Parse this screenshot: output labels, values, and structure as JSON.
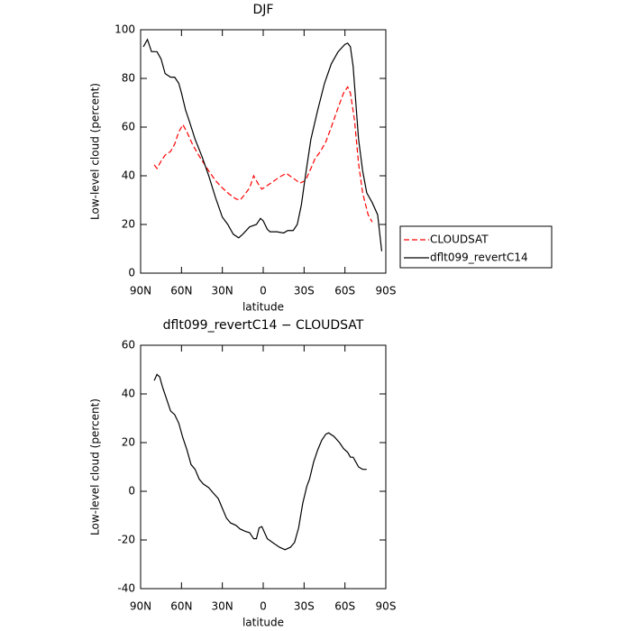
{
  "chart_data": [
    {
      "type": "line",
      "title": "DJF",
      "x_label": "latitude",
      "y_label": "Low-level cloud (percent)",
      "xlim": [
        90,
        -90
      ],
      "xticks": [
        {
          "value": 90,
          "label": "90N"
        },
        {
          "value": 60,
          "label": "60N"
        },
        {
          "value": 30,
          "label": "30N"
        },
        0,
        {
          "value": -30,
          "label": "30S"
        },
        {
          "value": -60,
          "label": "60S"
        },
        {
          "value": -90,
          "label": "90S"
        }
      ],
      "ylim": [
        0,
        100
      ],
      "yticks": [
        0,
        20,
        40,
        60,
        80,
        100
      ],
      "legend": "right",
      "series": [
        {
          "name": "CLOUDSAT",
          "color": "#ff0000",
          "dashed": true,
          "x": [
            80,
            78,
            75,
            72,
            68,
            65,
            62,
            59,
            56,
            52,
            48,
            44,
            40,
            35,
            30,
            25,
            20,
            17,
            14,
            10,
            7,
            5,
            3,
            1,
            -3,
            -7,
            -12,
            -17,
            -22,
            -27,
            -31,
            -35,
            -38,
            -42,
            -46,
            -50,
            -55,
            -59,
            -62,
            -64,
            -67,
            -70,
            -73,
            -77,
            -80
          ],
          "values": [
            44.5,
            43,
            46,
            48.5,
            50,
            53,
            58,
            61,
            58,
            53,
            49,
            45.5,
            42,
            38,
            35,
            32.5,
            30.5,
            30,
            32,
            35,
            40,
            38,
            36,
            34.5,
            36,
            37.5,
            39.5,
            41,
            39,
            37,
            38,
            43,
            47,
            50,
            54,
            60,
            68,
            74,
            76.5,
            74,
            63,
            45,
            33,
            24,
            21
          ]
        },
        {
          "name": "dflt099_revertC14",
          "color": "#000000",
          "dashed": false,
          "x": [
            88,
            85,
            82,
            78,
            75,
            72,
            68,
            65,
            62,
            60,
            57,
            54,
            50,
            45,
            40,
            35,
            30,
            26,
            22,
            18,
            15,
            10,
            5,
            2,
            0,
            -3,
            -5,
            -10,
            -15,
            -18,
            -22,
            -25,
            -28,
            -31,
            -35,
            -40,
            -45,
            -50,
            -55,
            -60,
            -62,
            -64,
            -66,
            -68,
            -70,
            -73,
            -76,
            -80,
            -84,
            -87
          ],
          "values": [
            93,
            96,
            91,
            91,
            88,
            82,
            80.5,
            80.5,
            78,
            74,
            67,
            62,
            55,
            48,
            40,
            31,
            23,
            20,
            16,
            14.5,
            16,
            19,
            20,
            22.5,
            21.5,
            18,
            17,
            17,
            16.5,
            17.5,
            17.5,
            20,
            28,
            40,
            55,
            67,
            78,
            86,
            91,
            94,
            94.5,
            93,
            85,
            70,
            55,
            42,
            33,
            29,
            24,
            9
          ]
        }
      ]
    },
    {
      "type": "line",
      "title": "dflt099_revertC14 − CLOUDSAT",
      "x_label": "latitude",
      "y_label": "Low-level cloud (percent)",
      "xlim": [
        90,
        -90
      ],
      "xticks": [
        {
          "value": 90,
          "label": "90N"
        },
        {
          "value": 60,
          "label": "60N"
        },
        {
          "value": 30,
          "label": "30N"
        },
        0,
        {
          "value": -30,
          "label": "30S"
        },
        {
          "value": -60,
          "label": "60S"
        },
        {
          "value": -90,
          "label": "90S"
        }
      ],
      "ylim": [
        -40,
        60
      ],
      "yticks": [
        -40,
        -20,
        0,
        20,
        40,
        60
      ],
      "series": [
        {
          "color": "#000000",
          "dashed": false,
          "x": [
            80,
            78,
            76,
            74,
            71,
            68,
            65,
            62,
            59,
            56,
            53,
            50,
            47,
            44,
            40,
            37,
            33,
            30,
            27,
            24,
            20,
            17,
            13,
            10,
            7,
            5,
            3,
            1,
            -3,
            -8,
            -12,
            -16,
            -20,
            -23,
            -26,
            -29,
            -32,
            -34,
            -37,
            -40,
            -43,
            -46,
            -48,
            -52,
            -56,
            -59,
            -62,
            -64,
            -66,
            -68,
            -70,
            -73,
            -76
          ],
          "values": [
            45.5,
            48,
            47,
            43,
            38,
            33,
            31.5,
            28,
            22,
            17,
            11,
            9,
            5,
            3,
            1.5,
            -0.5,
            -3,
            -7,
            -11,
            -13,
            -14,
            -15.5,
            -16.5,
            -17,
            -19.5,
            -19.5,
            -15,
            -14.5,
            -19.5,
            -21.5,
            -23,
            -24,
            -23,
            -21,
            -15,
            -5,
            2,
            5,
            12,
            17,
            21,
            23.5,
            24,
            22.5,
            20,
            17.5,
            16,
            14,
            14,
            12,
            10,
            9,
            9
          ]
        }
      ]
    }
  ]
}
